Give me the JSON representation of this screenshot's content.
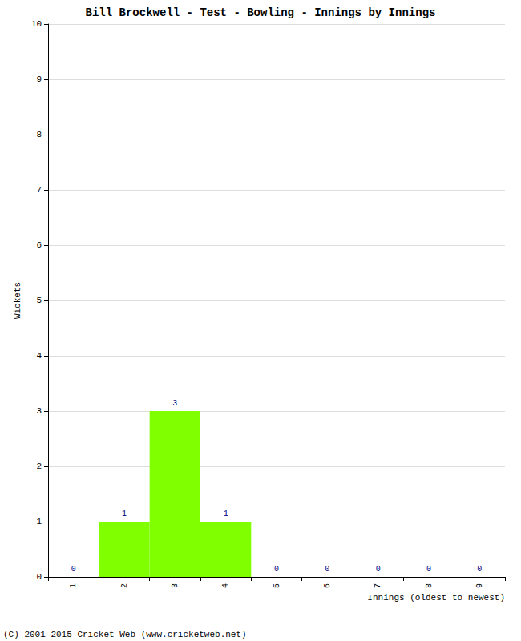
{
  "chart_data": {
    "type": "bar",
    "title": "Bill Brockwell - Test - Bowling - Innings by Innings",
    "x_label": "Innings (oldest to newest)",
    "y_label": "Wickets",
    "annotation": "(C) 2001-2015 Cricket Web (www.cricketweb.net)",
    "categories": [
      "1",
      "2",
      "3",
      "4",
      "5",
      "6",
      "7",
      "8",
      "9"
    ],
    "values": [
      0,
      1,
      3,
      1,
      0,
      0,
      0,
      0,
      0
    ],
    "color": "#80ff00",
    "ylim": [
      0,
      10
    ],
    "yticks": [
      0,
      1,
      2,
      3,
      4,
      5,
      6,
      7,
      8,
      9,
      10
    ],
    "grid": true,
    "data_labels": true
  }
}
